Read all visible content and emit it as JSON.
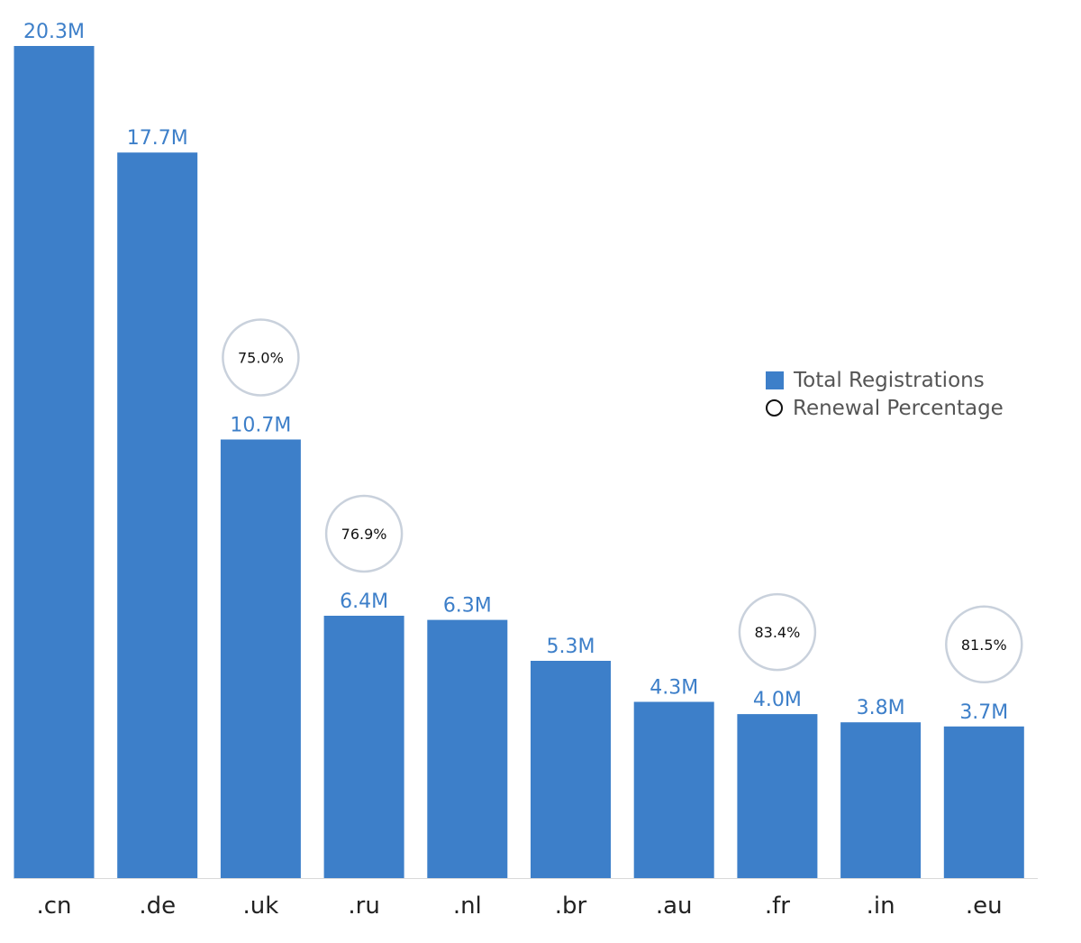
{
  "colors": {
    "bar": "#3d7fc9",
    "bar_label": "#3d7fc9",
    "circle_stroke": "#c9d1dc",
    "axis": "#d9d9d9"
  },
  "chart_data": {
    "type": "bar",
    "title": "",
    "xlabel": "",
    "ylabel": "",
    "categories": [
      ".cn",
      ".de",
      ".uk",
      ".ru",
      ".nl",
      ".br",
      ".au",
      ".fr",
      ".in",
      ".eu"
    ],
    "series": [
      {
        "name": "Total Registrations",
        "values": [
          20.3,
          17.7,
          10.7,
          6.4,
          6.3,
          5.3,
          4.3,
          4.0,
          3.8,
          3.7
        ],
        "labels": [
          "20.3M",
          "17.7M",
          "10.7M",
          "6.4M",
          "6.3M",
          "5.3M",
          "4.3M",
          "4.0M",
          "3.8M",
          "3.7M"
        ],
        "unit": "M"
      },
      {
        "name": "Renewal Percentage",
        "marker": "circle",
        "values": [
          null,
          null,
          75.0,
          76.9,
          null,
          null,
          null,
          83.4,
          null,
          81.5
        ],
        "labels": [
          null,
          null,
          "75.0%",
          "76.9%",
          null,
          null,
          null,
          "83.4%",
          null,
          "81.5%"
        ]
      }
    ],
    "ylim": [
      0,
      20.3
    ],
    "grid": false,
    "legend_position": "right"
  },
  "legend": {
    "items": [
      {
        "label": "Total Registrations",
        "marker": "square"
      },
      {
        "label": "Renewal Percentage",
        "marker": "circle"
      }
    ]
  }
}
